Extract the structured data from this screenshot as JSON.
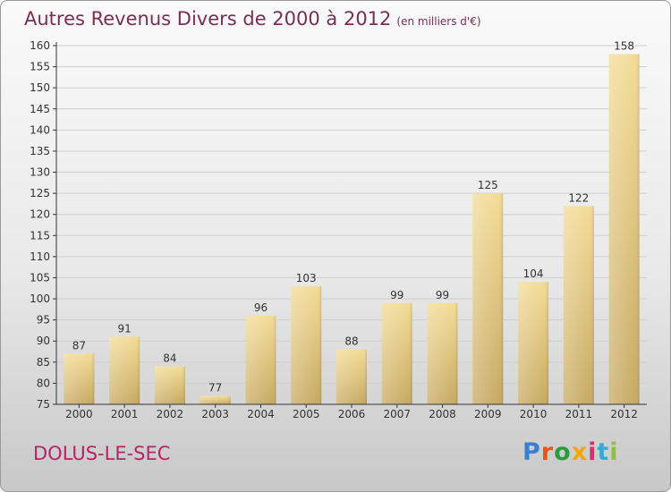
{
  "header": {
    "title": "Autres Revenus Divers de 2000 à 2012",
    "subtitle": "(en milliers d'€)"
  },
  "footer": {
    "commune": "DOLUS-LE-SEC",
    "logo_text": "Proxiti",
    "logo_colors": [
      "#3a7fd0",
      "#e8561e",
      "#2e9a3e",
      "#f2a516",
      "#d6306a",
      "#3aa7d9",
      "#8bc33a"
    ]
  },
  "colors": {
    "bar_light": "#f3dc97",
    "bar_dark": "#c7aa63",
    "grid": "#cfcfcf",
    "axis": "#333333",
    "text": "#333333"
  },
  "chart_data": {
    "type": "bar",
    "title": "Autres Revenus Divers de 2000 à 2012",
    "subtitle": "(en milliers d'€)",
    "categories": [
      "2000",
      "2001",
      "2002",
      "2003",
      "2004",
      "2005",
      "2006",
      "2007",
      "2008",
      "2009",
      "2010",
      "2011",
      "2012"
    ],
    "values": [
      87,
      91,
      84,
      77,
      96,
      103,
      88,
      99,
      99,
      125,
      104,
      122,
      158
    ],
    "ylim": [
      75,
      160
    ],
    "yticks": [
      75,
      80,
      85,
      90,
      95,
      100,
      105,
      110,
      115,
      120,
      125,
      130,
      135,
      140,
      145,
      150,
      155,
      160
    ],
    "grid": true,
    "data_labels": true
  }
}
